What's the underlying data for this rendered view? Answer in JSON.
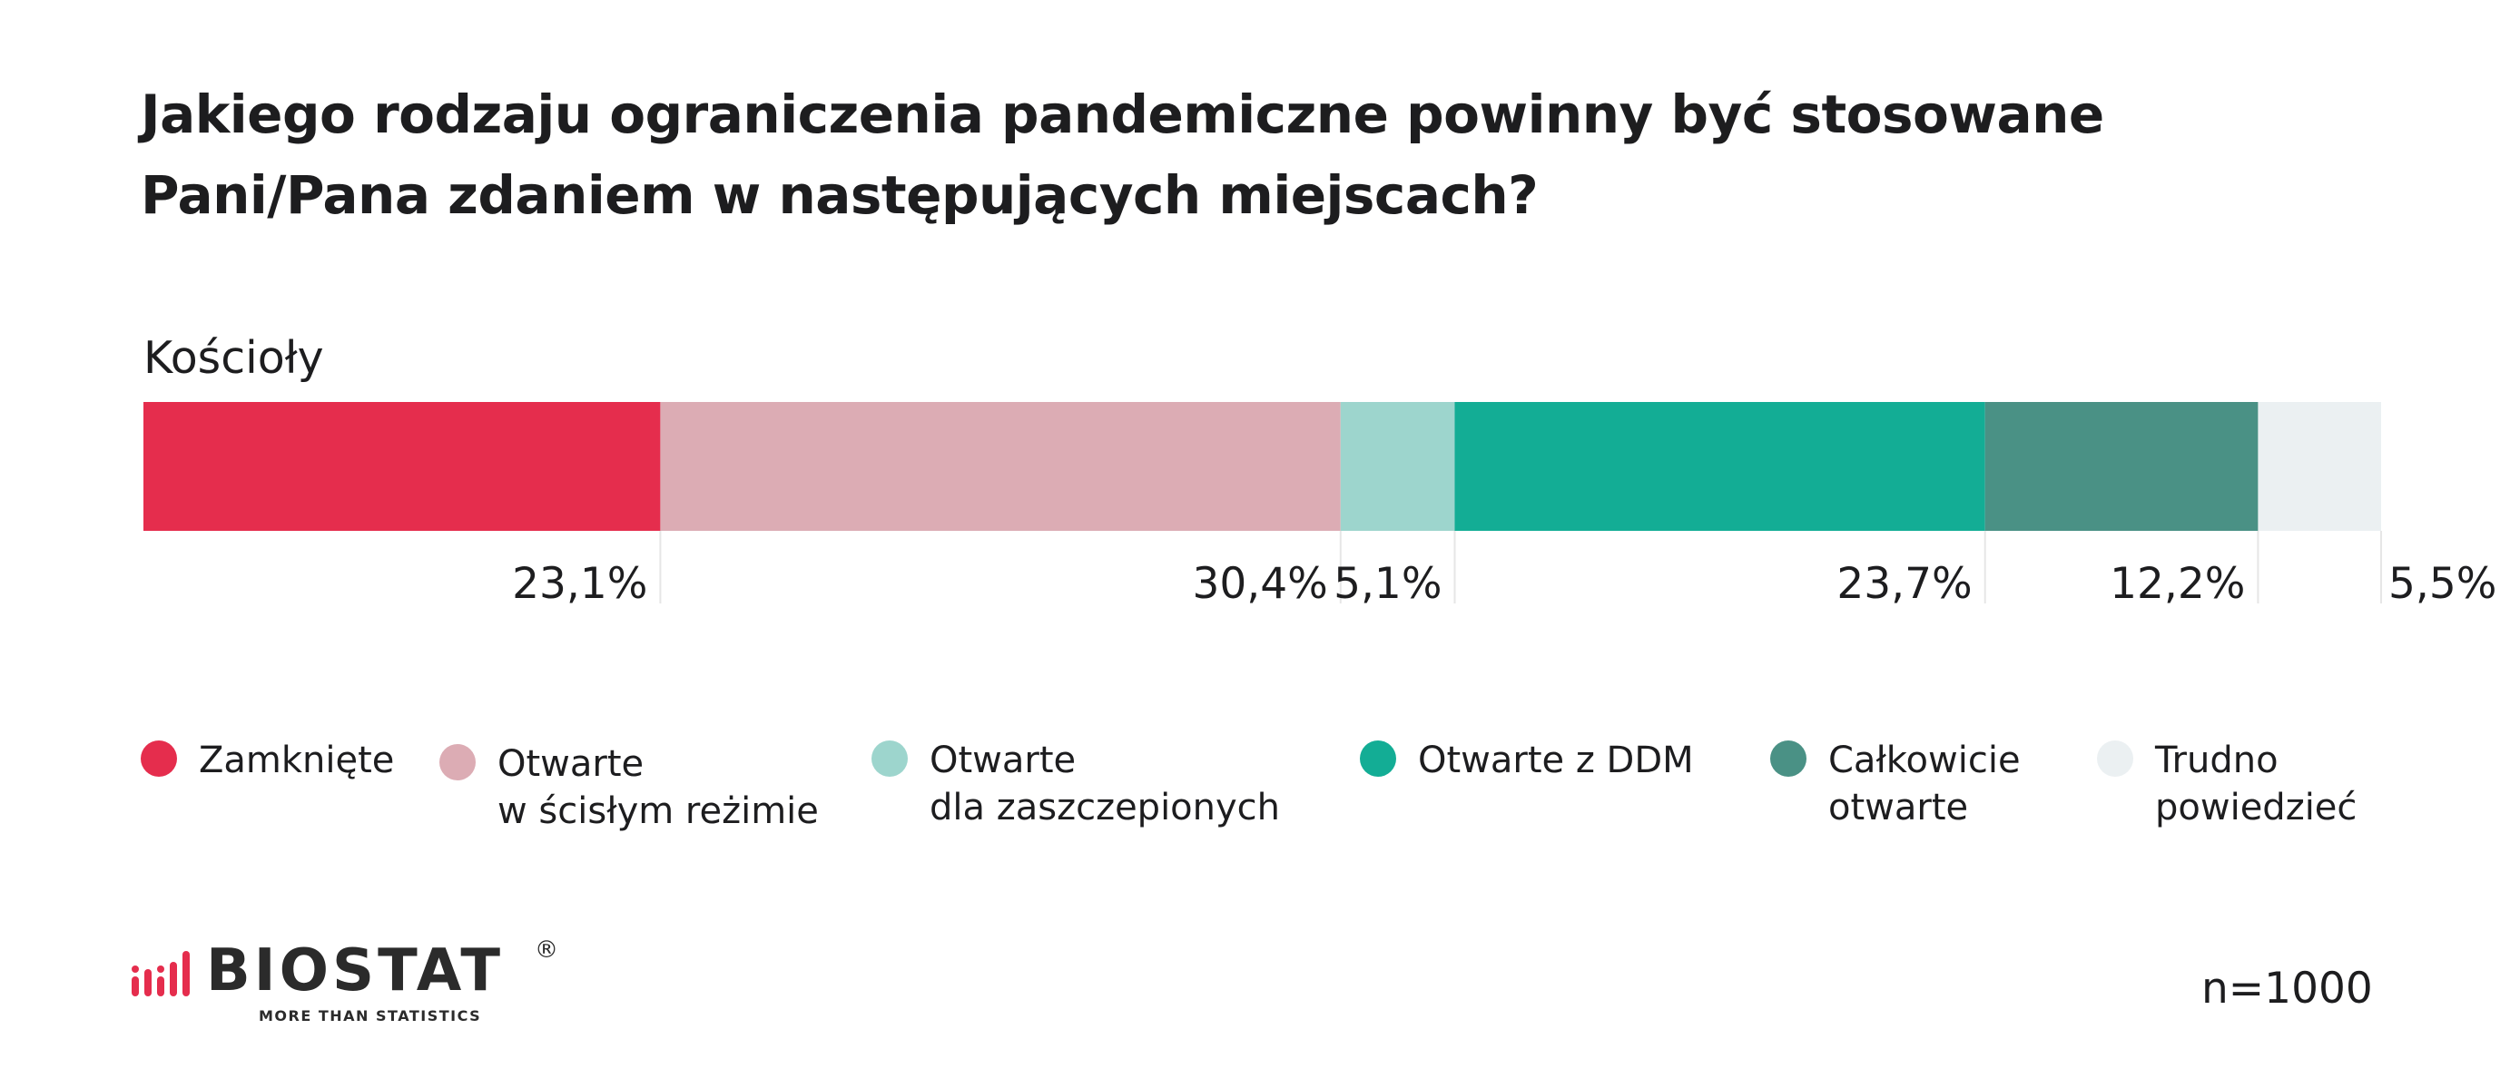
{
  "title_lines": [
    "Jakiego rodzaju ograniczenia pandemiczne powinny być stosowane",
    "Pani/Pana zdaniem w następujących miejscach?"
  ],
  "chart_data": {
    "type": "bar",
    "orientation": "horizontal-stacked",
    "categories": [
      "Kościoły"
    ],
    "series": [
      {
        "name": "Zamknięte",
        "label_lines": [
          "Zamknięte"
        ],
        "values": [
          23.1
        ],
        "label": "23,1%",
        "color": "#e52d4d"
      },
      {
        "name": "Otwarte w ścisłym reżimie",
        "label_lines": [
          "Otwarte",
          "w ścisłym reżimie"
        ],
        "values": [
          30.4
        ],
        "label": "30,4%",
        "color": "#dcacb4"
      },
      {
        "name": "Otwarte dla zaszczepionych",
        "label_lines": [
          "Otwarte",
          "dla zaszczepionych"
        ],
        "values": [
          5.1
        ],
        "label": "5,1%",
        "color": "#9dd5cd"
      },
      {
        "name": "Otwarte z DDM",
        "label_lines": [
          "Otwarte z DDM"
        ],
        "values": [
          23.7
        ],
        "label": "23,7%",
        "color": "#13ad95"
      },
      {
        "name": "Całkowicie otwarte",
        "label_lines": [
          "Całkowicie",
          "otwarte"
        ],
        "values": [
          12.2
        ],
        "label": "12,2%",
        "color": "#4a9185"
      },
      {
        "name": "Trudno powiedzieć",
        "label_lines": [
          "Trudno",
          "powiedzieć"
        ],
        "values": [
          5.5
        ],
        "label": "5,5%",
        "color": "#ebf0f2"
      }
    ],
    "xlim": [
      0,
      100
    ],
    "grid": false,
    "legend": "bottom"
  },
  "footer": {
    "brand": "BIOSTAT",
    "registered_mark": "®",
    "tagline": "MORE THAN STATISTICS",
    "brand_color": "#e52d4d",
    "sample_size": "n=1000"
  }
}
